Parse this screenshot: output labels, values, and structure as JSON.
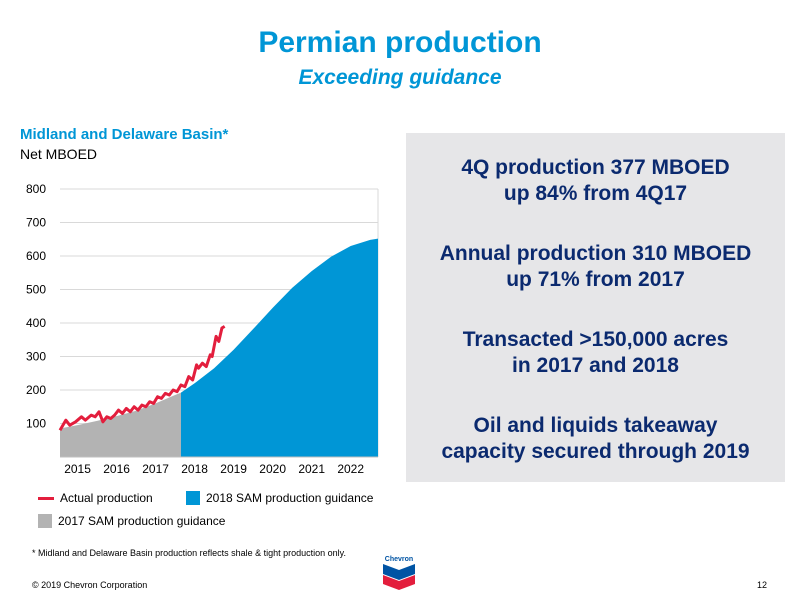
{
  "title": "Permian production",
  "subtitle": "Exceeding guidance",
  "chart_title": "Midland and Delaware Basin*",
  "chart_unit": "Net MBOED",
  "chart_data": {
    "type": "area",
    "title": "Midland and Delaware Basin*",
    "ylabel": "Net MBOED",
    "xlabel": "",
    "xlim": [
      2014.55,
      2022.7
    ],
    "ylim": [
      0,
      800
    ],
    "y_ticks": [
      100,
      200,
      300,
      400,
      500,
      600,
      700,
      800
    ],
    "x_ticks": [
      "2015",
      "2016",
      "2017",
      "2018",
      "2019",
      "2020",
      "2021",
      "2022"
    ],
    "grid": true,
    "legend_position": "bottom",
    "series": [
      {
        "name": "Actual production",
        "type": "line",
        "color": "#e31e3d",
        "x": [
          2014.55,
          2014.7,
          2014.8,
          2014.95,
          2015.1,
          2015.2,
          2015.35,
          2015.45,
          2015.55,
          2015.65,
          2015.75,
          2015.85,
          2015.95,
          2016.05,
          2016.15,
          2016.25,
          2016.35,
          2016.45,
          2016.55,
          2016.65,
          2016.75,
          2016.85,
          2016.95,
          2017.05,
          2017.15,
          2017.25,
          2017.35,
          2017.45,
          2017.55,
          2017.65,
          2017.75,
          2017.85,
          2017.95,
          2018.05,
          2018.1,
          2018.2,
          2018.3,
          2018.4,
          2018.45,
          2018.55,
          2018.62,
          2018.7,
          2018.77
        ],
        "y": [
          80,
          110,
          95,
          105,
          120,
          110,
          125,
          120,
          135,
          105,
          120,
          115,
          125,
          140,
          130,
          145,
          135,
          150,
          140,
          155,
          150,
          165,
          160,
          180,
          175,
          190,
          185,
          200,
          195,
          215,
          210,
          240,
          230,
          275,
          265,
          280,
          270,
          305,
          300,
          360,
          345,
          385,
          390
        ]
      },
      {
        "name": "2017 SAM production guidance",
        "type": "area",
        "color": "#b3b3b3",
        "x": [
          2014.55,
          2015,
          2015.5,
          2016,
          2016.5,
          2017,
          2017.5,
          2017.65
        ],
        "y": [
          85,
          95,
          108,
          122,
          138,
          160,
          185,
          192
        ]
      },
      {
        "name": "2018 SAM production guidance",
        "type": "area",
        "color": "#0096d6",
        "x": [
          2017.65,
          2018,
          2018.5,
          2019,
          2019.5,
          2020,
          2020.5,
          2021,
          2021.5,
          2022,
          2022.5,
          2022.7
        ],
        "y": [
          192,
          220,
          265,
          320,
          382,
          445,
          505,
          555,
          598,
          630,
          648,
          652
        ]
      }
    ]
  },
  "legend": {
    "actual": "Actual production",
    "guidance_2018": "2018 SAM production guidance",
    "guidance_2017": "2017 SAM production guidance"
  },
  "colors": {
    "accent": "#0096d6",
    "actual": "#e31e3d",
    "gray": "#b3b3b3",
    "navy": "#0b2a6f",
    "panel": "#e6e6e8"
  },
  "panel": {
    "line1a": "4Q production 377 MBOED",
    "line1b": "up 84% from 4Q17",
    "line2a": "Annual production 310 MBOED",
    "line2b": "up 71% from 2017",
    "line3a": "Transacted >150,000 acres",
    "line3b": "in 2017 and 2018",
    "line4a": "Oil and liquids takeaway",
    "line4b": "capacity secured through 2019"
  },
  "footnote": "* Midland and Delaware Basin production reflects shale & tight production only.",
  "logo_text": "Chevron",
  "copyright": "© 2019 Chevron Corporation",
  "page_number": "12"
}
